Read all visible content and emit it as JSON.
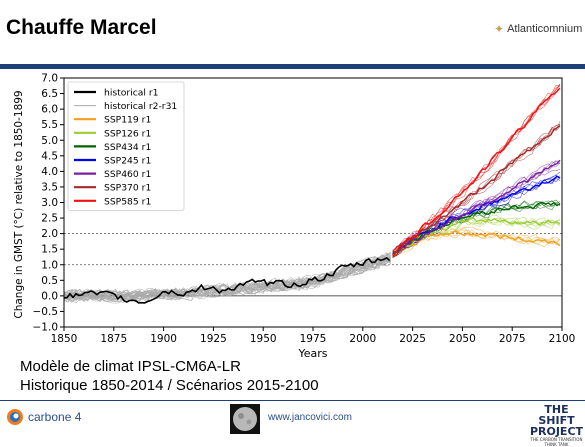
{
  "page": {
    "title": "Chauffe Marcel",
    "brand": "Atlanticomnium",
    "caption_line1": "Modèle de climat IPSL-CM6A-LR",
    "caption_line2": "Historique 1850-2014 / Scénarios 2015-2100"
  },
  "footer": {
    "carbone4": "carbone 4",
    "url": "www.jancovici.com",
    "shift_line1": "THE SHIFT",
    "shift_line2": "PROJECT",
    "shift_tagline": "THE CARBON TRANSITION THINK TANK"
  },
  "chart_data": {
    "type": "line",
    "ylabel": "Change in GMST (°C) relative to 1850-1899",
    "xlabel": "Years",
    "xlim": [
      1850,
      2100
    ],
    "ylim": [
      -1.0,
      7.0
    ],
    "xticks": [
      "1850",
      "1875",
      "1900",
      "1925",
      "1950",
      "1975",
      "2000",
      "2025",
      "2050",
      "2075",
      "2100"
    ],
    "yticks": [
      "−1.0",
      "−0.5",
      "0.0",
      "0.5",
      "1.0",
      "1.5",
      "2.0",
      "2.5",
      "3.0",
      "3.5",
      "4.0",
      "4.5",
      "5.0",
      "5.5",
      "6.0",
      "6.5",
      "7.0"
    ],
    "reference_lines": [
      0.0,
      1.0,
      2.0
    ],
    "legend_position": "top-left",
    "series": [
      {
        "name": "historical r1",
        "color": "#000000",
        "x": [
          1850,
          1860,
          1870,
          1880,
          1890,
          1900,
          1910,
          1920,
          1930,
          1940,
          1950,
          1960,
          1970,
          1980,
          1990,
          2000,
          2010,
          2014
        ],
        "y": [
          -0.05,
          0.05,
          0.0,
          -0.1,
          -0.2,
          0.15,
          0.1,
          0.25,
          0.2,
          0.35,
          0.4,
          0.35,
          0.45,
          0.6,
          0.85,
          1.05,
          1.2,
          1.25
        ]
      },
      {
        "name": "historical r2-r31",
        "color": "#aaaaaa",
        "x": [
          1850,
          1875,
          1900,
          1925,
          1950,
          1975,
          2000,
          2014
        ],
        "y": [
          0.0,
          0.0,
          0.05,
          0.15,
          0.3,
          0.45,
          0.95,
          1.2
        ]
      },
      {
        "name": "SSP119 r1",
        "color": "#f5a01a",
        "x": [
          2015,
          2025,
          2035,
          2045,
          2055,
          2065,
          2075,
          2085,
          2095,
          2100
        ],
        "y": [
          1.35,
          1.7,
          1.95,
          2.05,
          2.0,
          1.95,
          1.85,
          1.8,
          1.75,
          1.7
        ]
      },
      {
        "name": "SSP126 r1",
        "color": "#9acd32",
        "x": [
          2015,
          2025,
          2035,
          2045,
          2055,
          2065,
          2075,
          2085,
          2095,
          2100
        ],
        "y": [
          1.35,
          1.75,
          2.05,
          2.25,
          2.4,
          2.45,
          2.4,
          2.35,
          2.35,
          2.4
        ]
      },
      {
        "name": "SSP434 r1",
        "color": "#006400",
        "x": [
          2015,
          2025,
          2035,
          2045,
          2055,
          2065,
          2075,
          2085,
          2095,
          2100
        ],
        "y": [
          1.35,
          1.8,
          2.15,
          2.4,
          2.6,
          2.75,
          2.85,
          2.9,
          2.95,
          2.95
        ]
      },
      {
        "name": "SSP245 r1",
        "color": "#0000ee",
        "x": [
          2015,
          2025,
          2035,
          2045,
          2055,
          2065,
          2075,
          2085,
          2095,
          2100
        ],
        "y": [
          1.35,
          1.8,
          2.15,
          2.5,
          2.75,
          3.0,
          3.25,
          3.5,
          3.75,
          3.85
        ]
      },
      {
        "name": "SSP460 r1",
        "color": "#7b1fa2",
        "x": [
          2015,
          2025,
          2035,
          2045,
          2055,
          2065,
          2075,
          2085,
          2095,
          2100
        ],
        "y": [
          1.35,
          1.75,
          2.1,
          2.45,
          2.8,
          3.1,
          3.45,
          3.8,
          4.15,
          4.3
        ]
      },
      {
        "name": "SSP370 r1",
        "color": "#a52a2a",
        "x": [
          2015,
          2025,
          2035,
          2045,
          2055,
          2065,
          2075,
          2085,
          2095,
          2100
        ],
        "y": [
          1.35,
          1.85,
          2.3,
          2.75,
          3.25,
          3.75,
          4.25,
          4.75,
          5.3,
          5.55
        ]
      },
      {
        "name": "SSP585 r1",
        "color": "#ee1111",
        "x": [
          2015,
          2025,
          2035,
          2045,
          2055,
          2065,
          2075,
          2085,
          2095,
          2100
        ],
        "y": [
          1.35,
          1.9,
          2.45,
          3.05,
          3.65,
          4.35,
          5.05,
          5.8,
          6.5,
          6.85
        ]
      }
    ]
  }
}
